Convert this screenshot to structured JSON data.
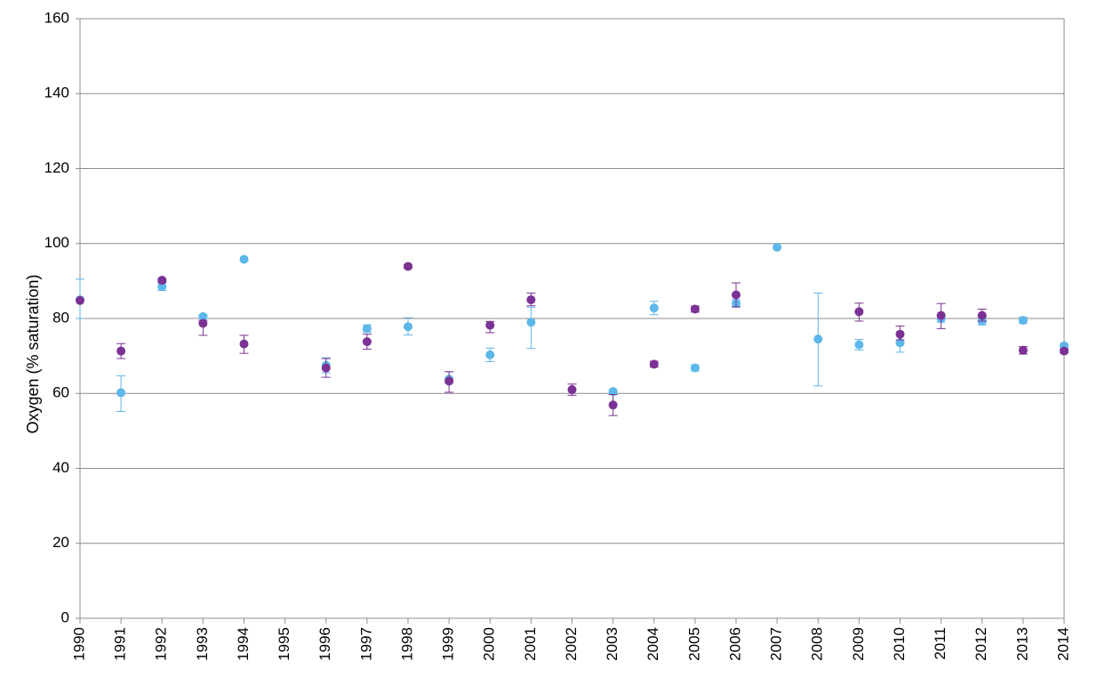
{
  "chart_data": {
    "type": "scatter",
    "title": "",
    "xlabel": "",
    "ylabel": "Oxygen (% saturation)",
    "ylim": [
      0,
      160
    ],
    "yticks": [
      0,
      20,
      40,
      60,
      80,
      100,
      120,
      140,
      160
    ],
    "grid": true,
    "legend": "none",
    "categories": [
      "1990",
      "1991",
      "1992",
      "1993",
      "1994",
      "1995",
      "1996",
      "1997",
      "1998",
      "1999",
      "2000",
      "2001",
      "2002",
      "2003",
      "2004",
      "2005",
      "2006",
      "2007",
      "2008",
      "2009",
      "2010",
      "2011",
      "2012",
      "2013",
      "2014"
    ],
    "series": [
      {
        "color": "#5db7ea",
        "values": [
          85,
          60.2,
          88.5,
          80.5,
          95.8,
          null,
          67.5,
          77.3,
          77.8,
          63.8,
          70.3,
          79,
          null,
          60.5,
          82.8,
          66.8,
          84,
          99,
          74.5,
          73,
          73.5,
          80,
          79.3,
          79.5,
          72.7
        ],
        "err_low": [
          5,
          5,
          1,
          0.5,
          0,
          null,
          2,
          1,
          2.2,
          1,
          1.8,
          7,
          null,
          0.5,
          1.8,
          0.8,
          1,
          0,
          12.5,
          1.4,
          2.5,
          1,
          1,
          0.8,
          0.5
        ],
        "err_high": [
          5.5,
          4.5,
          1,
          0.5,
          0,
          null,
          2,
          1,
          2.4,
          2,
          1.8,
          4,
          null,
          0.5,
          1.8,
          0.8,
          1,
          0,
          12.3,
          1.4,
          2.5,
          1,
          1,
          0.8,
          0.5
        ]
      },
      {
        "color": "#7b3294",
        "values": [
          84.8,
          71.3,
          90.2,
          78.7,
          73.2,
          null,
          66.8,
          73.8,
          93.9,
          63.3,
          78.2,
          85,
          61,
          56.9,
          67.8,
          82.5,
          86.3,
          null,
          null,
          81.8,
          75.8,
          80.8,
          80.8,
          71.5,
          71.3
        ],
        "err_low": [
          0,
          2,
          0.5,
          3.2,
          2.5,
          null,
          2.5,
          2,
          0.5,
          3,
          2,
          1.6,
          1.5,
          2.8,
          0.8,
          0.8,
          3.2,
          null,
          null,
          2.5,
          1.5,
          3.5,
          1.5,
          1,
          0.5
        ],
        "err_high": [
          0,
          2,
          0.5,
          0.8,
          2.3,
          null,
          2.5,
          2,
          0.5,
          2.5,
          1,
          1.8,
          1.5,
          2.8,
          0.8,
          0.8,
          3.2,
          null,
          null,
          2.3,
          2.2,
          3.2,
          1.7,
          1,
          0.5
        ]
      }
    ]
  }
}
